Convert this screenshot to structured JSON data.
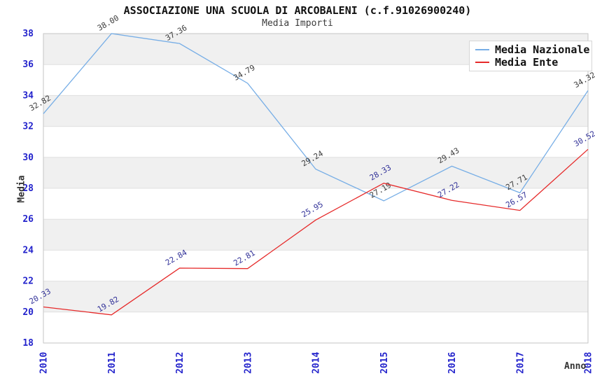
{
  "colors": {
    "nazionale_line": "#77AEE6",
    "ente_line": "#E62A2A",
    "axis_tick_label": "#2424CC",
    "nazionale_point_label": "#3C3C3C",
    "ente_point_label": "#333399",
    "band_fill": "#F0F0F0",
    "grid_line": "#E0E0E0",
    "plot_border": "#C6C6C6"
  },
  "chart_data": {
    "type": "line",
    "title": "ASSOCIAZIONE UNA SCUOLA DI ARCOBALENI (c.f.91026900240)",
    "subtitle": "Media Importi",
    "xlabel": "Anno",
    "ylabel": "Media",
    "x": [
      2010,
      2011,
      2012,
      2013,
      2014,
      2015,
      2016,
      2017,
      2018
    ],
    "series": [
      {
        "name": "Media Nazionale",
        "color": "#77AEE6",
        "label_color": "#3C3C3C",
        "values": [
          32.82,
          38.0,
          37.36,
          34.79,
          29.24,
          27.19,
          29.43,
          27.71,
          34.32
        ]
      },
      {
        "name": "Media Ente",
        "color": "#E62A2A",
        "label_color": "#333399",
        "values": [
          20.33,
          19.82,
          22.84,
          22.81,
          25.95,
          28.33,
          27.22,
          26.57,
          30.52
        ]
      }
    ],
    "ylim": [
      18,
      38
    ],
    "ytick_step": 2,
    "grid": "horizontal-bands",
    "legend_position": "top-right",
    "point_label_decimals": 2
  }
}
